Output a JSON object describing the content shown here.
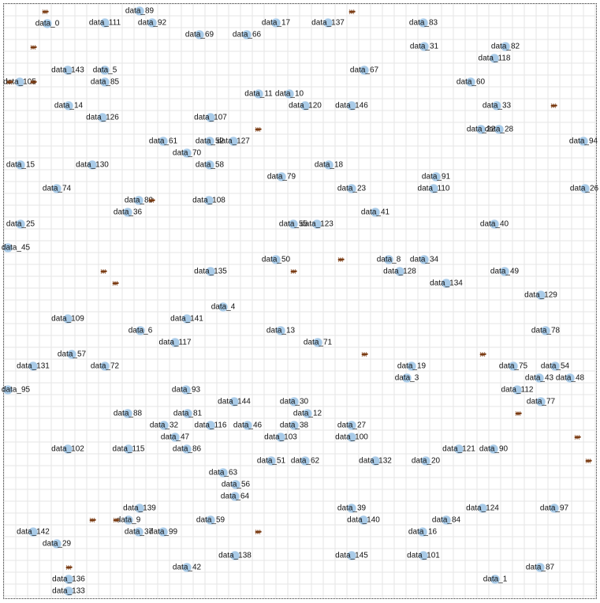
{
  "colors": {
    "node": "#a9cbe8",
    "node_stroke": "#ffffff",
    "grid": "#e6e6e6",
    "ant": "#7a3b12",
    "text": "#111111"
  },
  "nodes": [
    {
      "label": "data_0"
    },
    {
      "label": "data_1"
    },
    {
      "label": "data_3"
    },
    {
      "label": "data_4"
    },
    {
      "label": "data_5"
    },
    {
      "label": "data_6"
    },
    {
      "label": "data_8"
    },
    {
      "label": "data_9"
    },
    {
      "label": "data_10"
    },
    {
      "label": "data_11"
    },
    {
      "label": "data_12"
    },
    {
      "label": "data_13"
    },
    {
      "label": "data_14"
    },
    {
      "label": "data_15"
    },
    {
      "label": "data_16"
    },
    {
      "label": "data_17"
    },
    {
      "label": "data_18"
    },
    {
      "label": "data_19"
    },
    {
      "label": "data_20"
    },
    {
      "label": "data_22"
    },
    {
      "label": "data_23"
    },
    {
      "label": "data_25"
    },
    {
      "label": "data_26"
    },
    {
      "label": "data_27"
    },
    {
      "label": "data_28"
    },
    {
      "label": "data_29"
    },
    {
      "label": "data_30"
    },
    {
      "label": "data_31"
    },
    {
      "label": "data_32"
    },
    {
      "label": "data_33"
    },
    {
      "label": "data_34"
    },
    {
      "label": "data_36"
    },
    {
      "label": "data_37"
    },
    {
      "label": "data_38"
    },
    {
      "label": "data_39"
    },
    {
      "label": "data_40"
    },
    {
      "label": "data_41"
    },
    {
      "label": "data_42"
    },
    {
      "label": "data_43"
    },
    {
      "label": "data_45"
    },
    {
      "label": "data_46"
    },
    {
      "label": "data_47"
    },
    {
      "label": "data_48"
    },
    {
      "label": "data_49"
    },
    {
      "label": "data_50"
    },
    {
      "label": "data_51"
    },
    {
      "label": "data_52"
    },
    {
      "label": "data_54"
    },
    {
      "label": "data_55"
    },
    {
      "label": "data_56"
    },
    {
      "label": "data_57"
    },
    {
      "label": "data_58"
    },
    {
      "label": "data_59"
    },
    {
      "label": "data_60"
    },
    {
      "label": "data_61"
    },
    {
      "label": "data_62"
    },
    {
      "label": "data_63"
    },
    {
      "label": "data_64"
    },
    {
      "label": "data_66"
    },
    {
      "label": "data_67"
    },
    {
      "label": "data_69"
    },
    {
      "label": "data_70"
    },
    {
      "label": "data_71"
    },
    {
      "label": "data_72"
    },
    {
      "label": "data_74"
    },
    {
      "label": "data_75"
    },
    {
      "label": "data_77"
    },
    {
      "label": "data_78"
    },
    {
      "label": "data_79"
    },
    {
      "label": "data_80"
    },
    {
      "label": "data_81"
    },
    {
      "label": "data_82"
    },
    {
      "label": "data_83"
    },
    {
      "label": "data_84"
    },
    {
      "label": "data_85"
    },
    {
      "label": "data_86"
    },
    {
      "label": "data_87"
    },
    {
      "label": "data_88"
    },
    {
      "label": "data_89"
    },
    {
      "label": "data_90"
    },
    {
      "label": "data_91"
    },
    {
      "label": "data_92"
    },
    {
      "label": "data_93"
    },
    {
      "label": "data_94"
    },
    {
      "label": "data_95"
    },
    {
      "label": "data_97"
    },
    {
      "label": "data_99"
    },
    {
      "label": "data_100"
    },
    {
      "label": "data_101"
    },
    {
      "label": "data_102"
    },
    {
      "label": "data_103"
    },
    {
      "label": "data_105"
    },
    {
      "label": "data_107"
    },
    {
      "label": "data_108"
    },
    {
      "label": "data_109"
    },
    {
      "label": "data_110"
    },
    {
      "label": "data_111"
    },
    {
      "label": "data_112"
    },
    {
      "label": "data_115"
    },
    {
      "label": "data_116"
    },
    {
      "label": "data_117"
    },
    {
      "label": "data_118"
    },
    {
      "label": "data_120"
    },
    {
      "label": "data_121"
    },
    {
      "label": "data_123"
    },
    {
      "label": "data_124"
    },
    {
      "label": "data_126"
    },
    {
      "label": "data_127"
    },
    {
      "label": "data_128"
    },
    {
      "label": "data_129"
    },
    {
      "label": "data_130"
    },
    {
      "label": "data_131"
    },
    {
      "label": "data_132"
    },
    {
      "label": "data_133"
    },
    {
      "label": "data_134"
    },
    {
      "label": "data_135"
    },
    {
      "label": "data_136"
    },
    {
      "label": "data_137"
    },
    {
      "label": "data_138"
    },
    {
      "label": "data_139"
    },
    {
      "label": "data_140"
    },
    {
      "label": "data_141"
    },
    {
      "label": "data_142"
    },
    {
      "label": "data_143"
    },
    {
      "label": "data_144"
    },
    {
      "label": "data_145"
    },
    {
      "label": "data_146"
    }
  ]
}
